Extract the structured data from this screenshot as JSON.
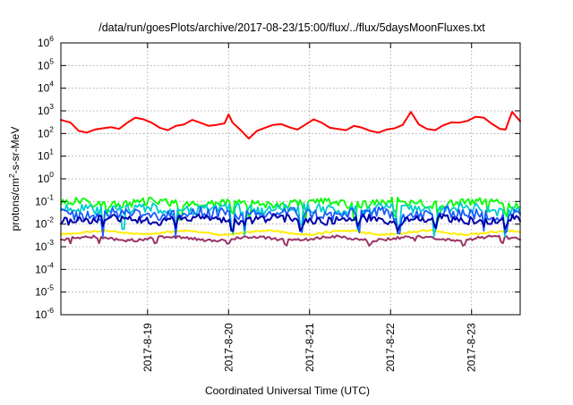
{
  "chart_data": {
    "type": "line",
    "title": "/data/run/goesPlots/archive/2017-08-23/15:00/flux/../flux/5daysMoonFluxes.txt",
    "xlabel": "Coordinated Universal Time (UTC)",
    "ylabel": {
      "prefix": "protons/cm",
      "superscript": "2",
      "suffix": "-s-sr-MeV"
    },
    "yscale": "log",
    "ylim_exponent": [
      -6,
      6
    ],
    "yticks": [
      {
        "base": "10",
        "exp": "-6"
      },
      {
        "base": "10",
        "exp": "-5"
      },
      {
        "base": "10",
        "exp": "-4"
      },
      {
        "base": "10",
        "exp": "-3"
      },
      {
        "base": "10",
        "exp": "-2"
      },
      {
        "base": "10",
        "exp": "-1"
      },
      {
        "base": "10",
        "exp": "0"
      },
      {
        "base": "10",
        "exp": "1"
      },
      {
        "base": "10",
        "exp": "2"
      },
      {
        "base": "10",
        "exp": "3"
      },
      {
        "base": "10",
        "exp": "4"
      },
      {
        "base": "10",
        "exp": "5"
      },
      {
        "base": "10",
        "exp": "6"
      }
    ],
    "xlim_days": [
      -1.07,
      4.6
    ],
    "xticks": [
      {
        "label": "2017-8-19",
        "day": 0
      },
      {
        "label": "2017-8-20",
        "day": 1
      },
      {
        "label": "2017-8-21",
        "day": 2
      },
      {
        "label": "2017-8-22",
        "day": 3
      },
      {
        "label": "2017-8-23",
        "day": 4
      }
    ],
    "grid": true,
    "legend": "none",
    "series": [
      {
        "color": "#ff0000",
        "stroke_width": 2.0,
        "x": [
          -1.07,
          -0.95,
          -0.85,
          -0.75,
          -0.65,
          -0.55,
          -0.45,
          -0.35,
          -0.25,
          -0.15,
          -0.05,
          0.05,
          0.15,
          0.25,
          0.35,
          0.45,
          0.55,
          0.65,
          0.75,
          0.85,
          0.95,
          1.0,
          1.05,
          1.15,
          1.25,
          1.35,
          1.45,
          1.55,
          1.65,
          1.75,
          1.85,
          1.95,
          2.05,
          2.15,
          2.25,
          2.35,
          2.45,
          2.55,
          2.65,
          2.75,
          2.85,
          2.95,
          3.05,
          3.15,
          3.25,
          3.35,
          3.45,
          3.55,
          3.65,
          3.75,
          3.85,
          3.95,
          4.05,
          4.15,
          4.25,
          4.35,
          4.42,
          4.5,
          4.6
        ],
        "y": [
          400,
          300,
          130,
          110,
          150,
          170,
          190,
          160,
          300,
          500,
          420,
          300,
          180,
          140,
          220,
          250,
          400,
          300,
          220,
          240,
          280,
          700,
          300,
          140,
          60,
          130,
          180,
          240,
          260,
          190,
          150,
          250,
          420,
          300,
          180,
          160,
          140,
          220,
          180,
          130,
          110,
          150,
          170,
          240,
          900,
          250,
          160,
          140,
          230,
          310,
          300,
          360,
          550,
          500,
          270,
          160,
          150,
          900,
          350
        ]
      },
      {
        "color": "#00ff00",
        "stroke_width": 1.8,
        "band": {
          "base": 0.085,
          "amp": 0.35,
          "dips": [
            -0.5,
            0.4,
            1.05,
            1.25,
            1.95,
            2.55,
            3.05,
            3.6,
            4.2,
            4.42
          ],
          "dip_factor": 0.28
        },
        "x": [],
        "y": []
      },
      {
        "color": "#00cccc",
        "stroke_width": 1.8,
        "band": {
          "base": 0.045,
          "amp": 0.45,
          "dips": [
            -0.55,
            -0.3,
            0.35,
            1.05,
            1.2,
            1.9,
            2.6,
            3.1,
            3.55,
            4.15,
            4.42
          ],
          "dip_factor": 0.12
        },
        "x": [],
        "y": []
      },
      {
        "color": "#1a5cff",
        "stroke_width": 1.8,
        "band": {
          "base": 0.028,
          "amp": 0.5,
          "dips": [
            -0.55,
            0.35,
            1.05,
            1.2,
            1.9,
            2.6,
            3.1,
            3.55,
            4.15,
            4.42
          ],
          "dip_factor": 0.2
        },
        "x": [],
        "y": []
      },
      {
        "color": "#0000aa",
        "stroke_width": 2.0,
        "band": {
          "base": 0.016,
          "amp": 0.35,
          "dips": [
            -0.55,
            0.35,
            1.05,
            1.2,
            1.9,
            2.6,
            3.1,
            3.55,
            4.15,
            4.42
          ],
          "dip_factor": 0.45
        },
        "x": [],
        "y": []
      },
      {
        "color": "#ffee00",
        "stroke_width": 2.0,
        "band": {
          "base": 0.0042,
          "amp": 0.08,
          "dips": [],
          "dip_factor": 1.0
        },
        "x": [],
        "y": []
      },
      {
        "color": "#993366",
        "stroke_width": 2.0,
        "band": {
          "base": 0.0023,
          "amp": 0.12,
          "dips": [
            -0.95,
            -0.6,
            0.1,
            1.0,
            1.7,
            2.75,
            3.3,
            3.9,
            4.38
          ],
          "dip_factor": 0.6
        },
        "x": [],
        "y": []
      }
    ]
  }
}
